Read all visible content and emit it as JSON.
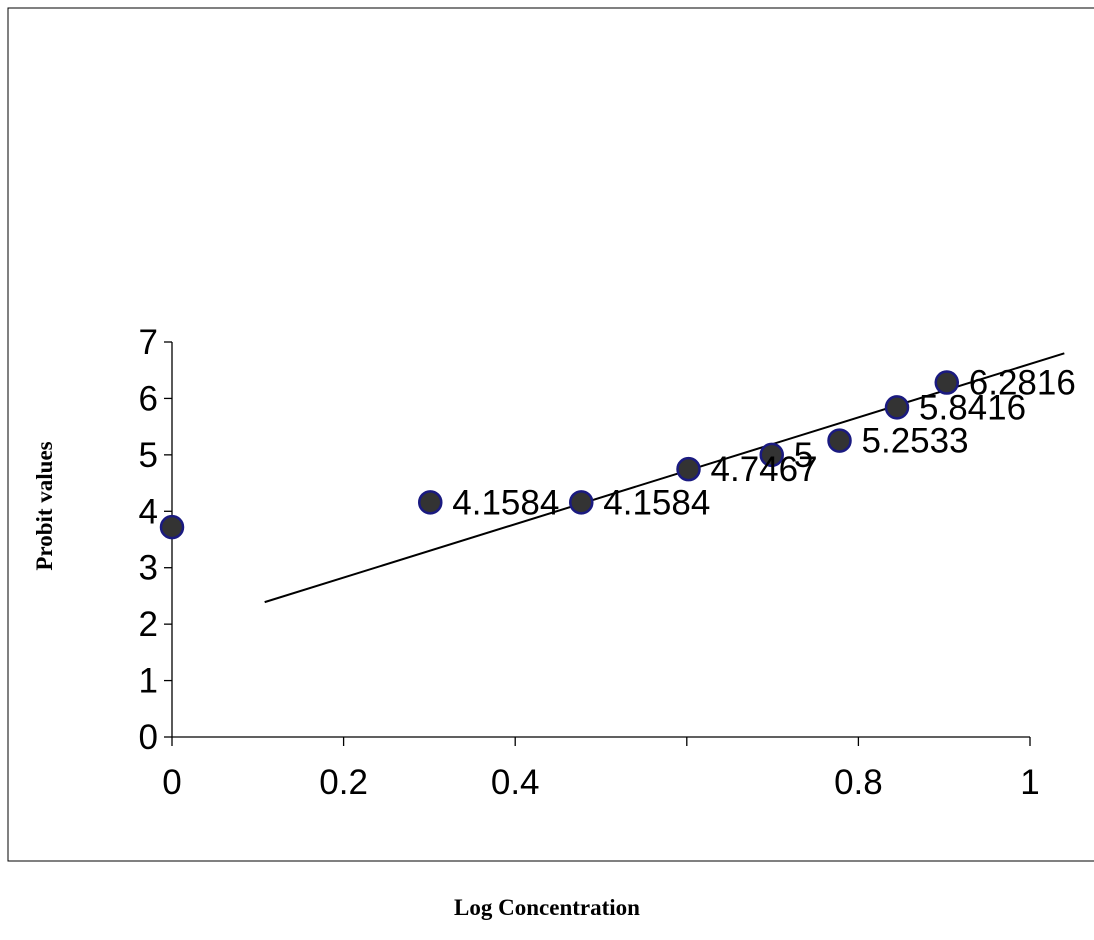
{
  "chart_data": {
    "type": "scatter",
    "title": "",
    "xlabel": "Log Concentration",
    "ylabel": "Probit values",
    "xlim": [
      0,
      1
    ],
    "ylim": [
      0,
      7
    ],
    "x_ticks": [
      0,
      0.2,
      0.4,
      0.6,
      0.8,
      1
    ],
    "x_tick_labels": [
      "0",
      "0.2",
      "0.4",
      "",
      "0.8",
      "1"
    ],
    "y_ticks": [
      0,
      1,
      2,
      3,
      4,
      5,
      6,
      7
    ],
    "y_tick_labels": [
      "0",
      "1",
      "2",
      "3",
      "4",
      "5",
      "6",
      "7"
    ],
    "grid": false,
    "legend": "none",
    "series": [
      {
        "points": [
          {
            "x": 0.0,
            "y": 3.719,
            "label": ""
          },
          {
            "x": 0.301,
            "y": 4.1584,
            "label": "4.1584"
          },
          {
            "x": 0.477,
            "y": 4.1584,
            "label": "4.1584"
          },
          {
            "x": 0.602,
            "y": 4.7467,
            "label": "4.7467"
          },
          {
            "x": 0.699,
            "y": 5.0,
            "label": "5"
          },
          {
            "x": 0.778,
            "y": 5.2533,
            "label": "5.2533"
          },
          {
            "x": 0.845,
            "y": 5.8416,
            "label": "5.8416"
          },
          {
            "x": 0.903,
            "y": 6.2816,
            "label": "6.2816"
          }
        ],
        "marker_color": "#333333",
        "marker_edge": "#1a1a80"
      }
    ],
    "trendline": {
      "x": [
        0.108,
        1.04
      ],
      "y": [
        2.39,
        6.8
      ],
      "color": "#000000"
    }
  }
}
